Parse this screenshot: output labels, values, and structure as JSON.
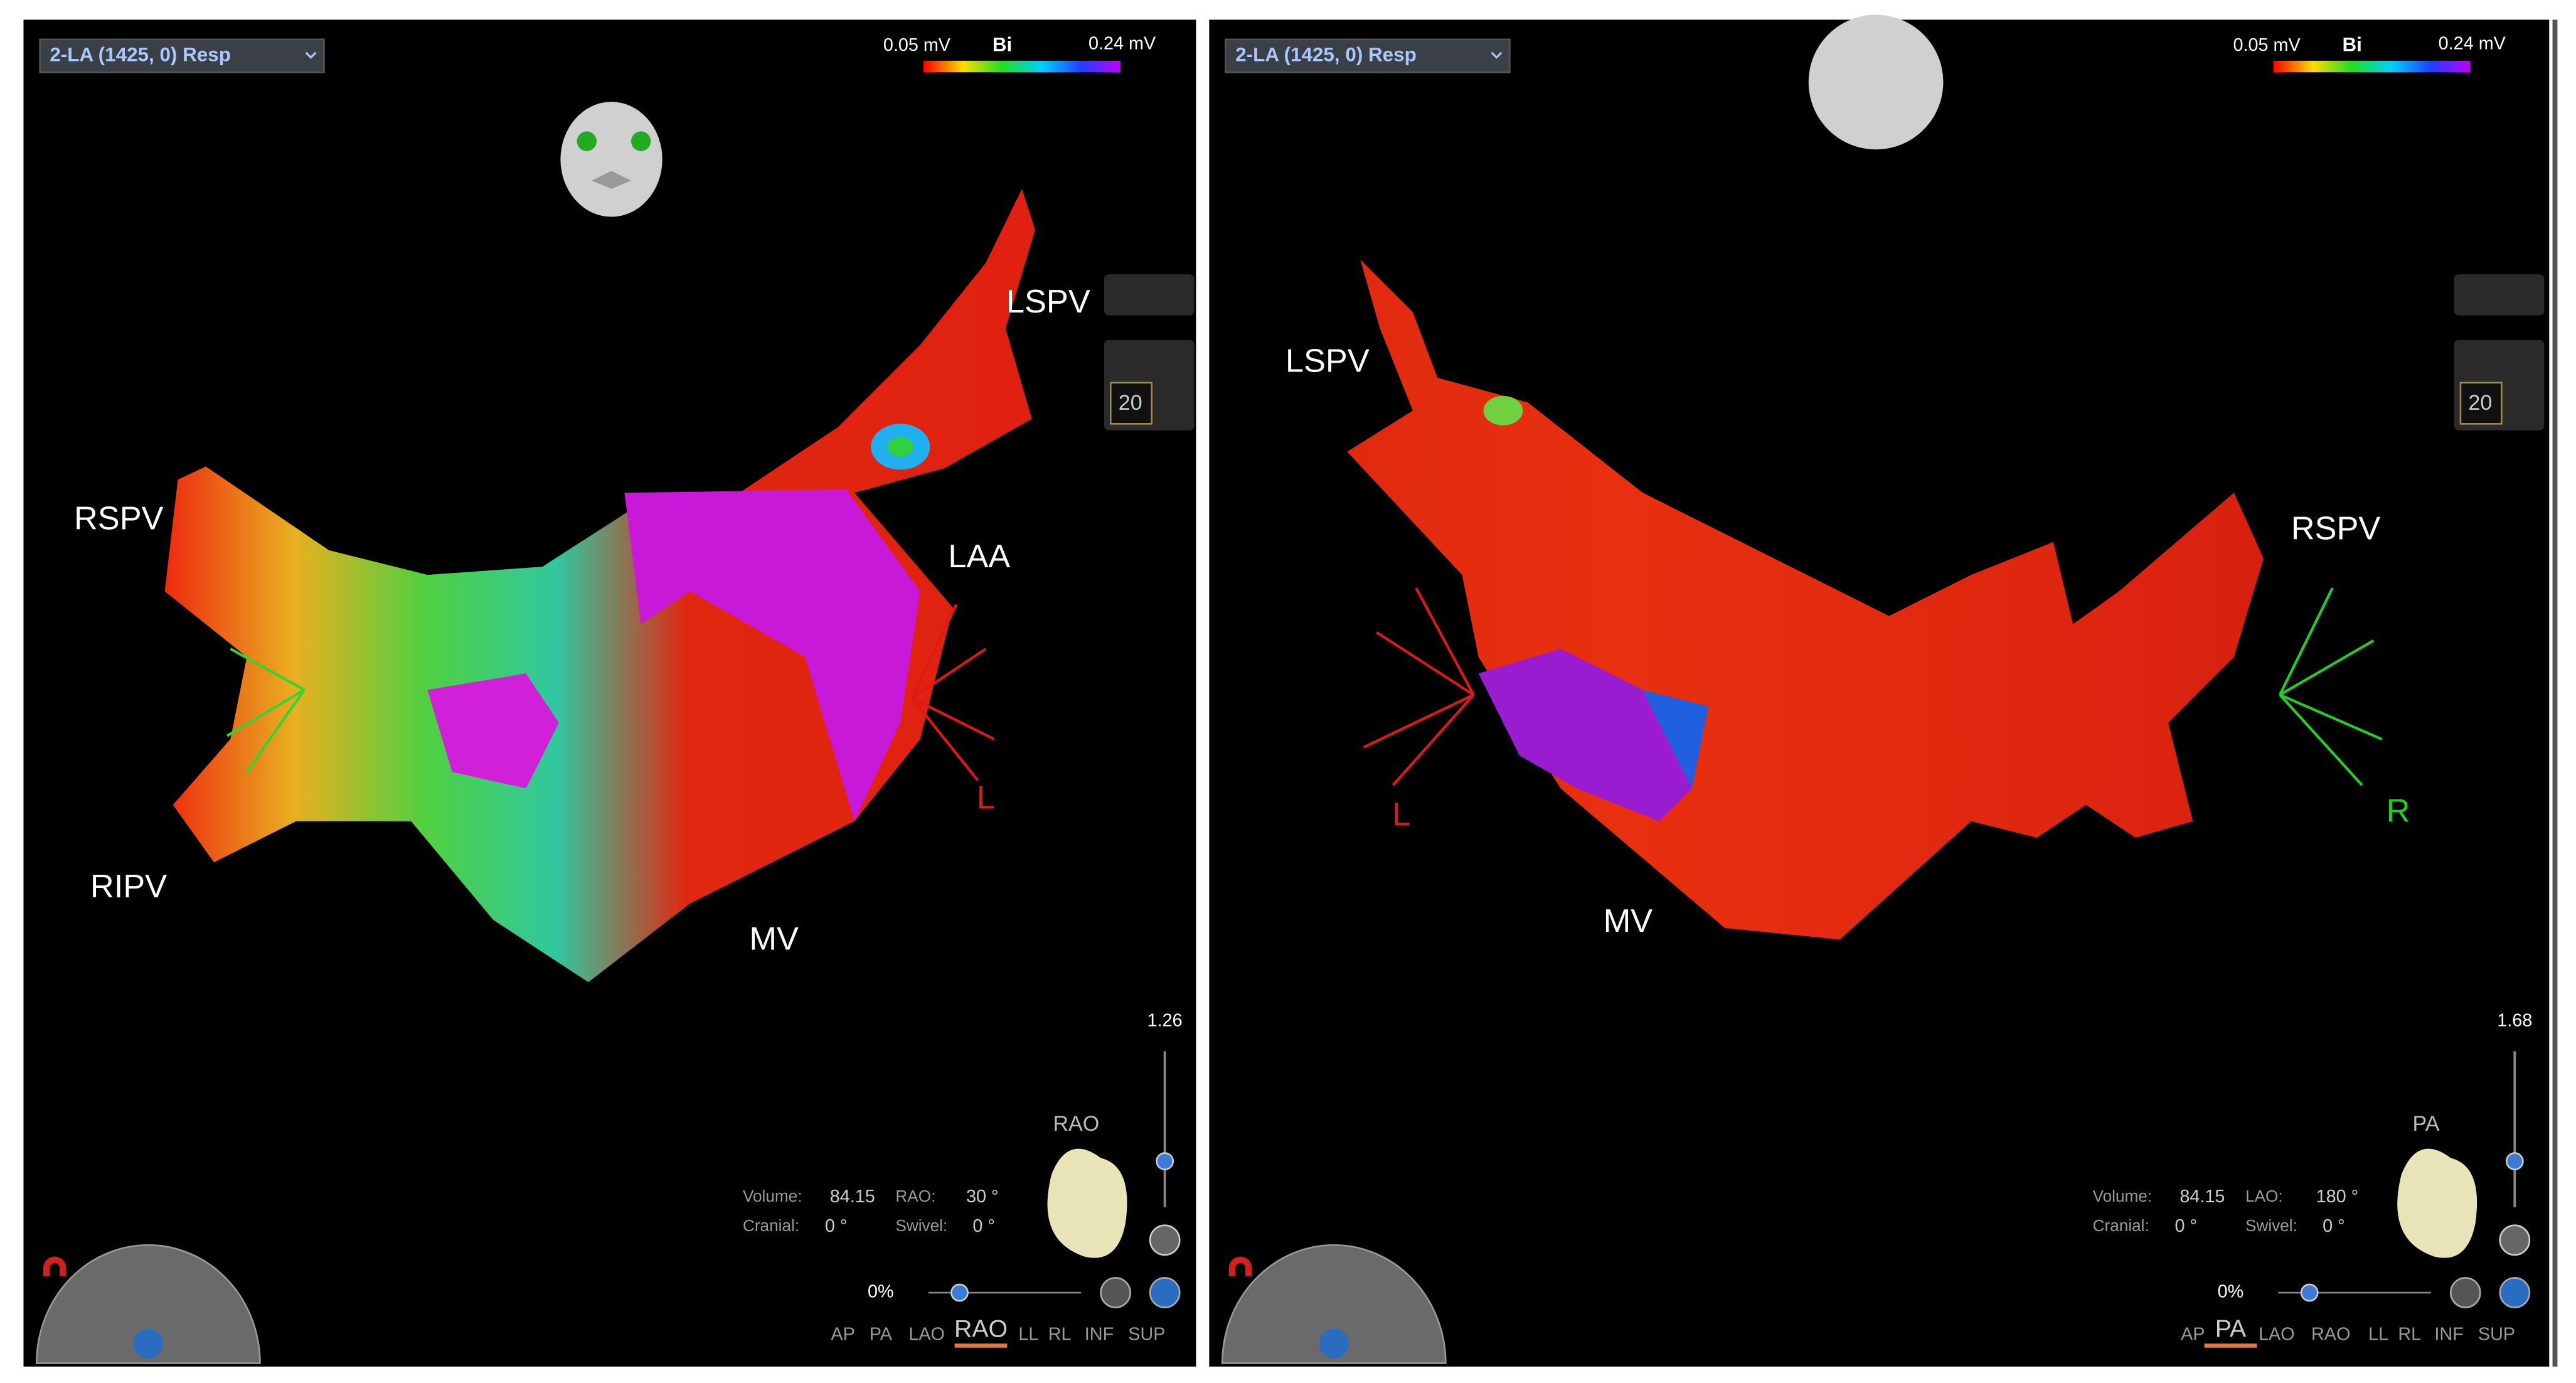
{
  "panels": [
    {
      "dropdown": "2-LA (1425, 0) Resp",
      "scale": {
        "min": "0.05 mV",
        "mode": "Bi",
        "max": "0.24 mV"
      },
      "labels": [
        {
          "text": "LSPV",
          "color": "#ffffff"
        },
        {
          "text": "RSPV",
          "color": "#ffffff"
        },
        {
          "text": "LAA",
          "color": "#ffffff"
        },
        {
          "text": "RIPV",
          "color": "#ffffff"
        },
        {
          "text": "MV",
          "color": "#ffffff"
        },
        {
          "text": "L",
          "color": "#e01818"
        }
      ],
      "counter": "20",
      "zoom": "1.26",
      "view_name": "RAO",
      "info": {
        "volume_label": "Volume:",
        "volume": "84.15",
        "angle_label": "RAO:",
        "angle": "30 °",
        "cranial_label": "Cranial:",
        "cranial": "0 °",
        "swivel_label": "Swivel:",
        "swivel": "0 °"
      },
      "percent": "0%",
      "views": [
        "AP",
        "PA",
        "LAO",
        "RAO",
        "LL",
        "RL",
        "INF",
        "SUP"
      ],
      "active_view": "RAO"
    },
    {
      "dropdown": "2-LA (1425, 0) Resp",
      "scale": {
        "min": "0.05 mV",
        "mode": "Bi",
        "max": "0.24 mV"
      },
      "labels": [
        {
          "text": "LSPV",
          "color": "#ffffff"
        },
        {
          "text": "RSPV",
          "color": "#ffffff"
        },
        {
          "text": "L",
          "color": "#e01818"
        },
        {
          "text": "MV",
          "color": "#ffffff"
        },
        {
          "text": "R",
          "color": "#22d022"
        }
      ],
      "counter": "20",
      "zoom": "1.68",
      "view_name": "PA",
      "info": {
        "volume_label": "Volume:",
        "volume": "84.15",
        "angle_label": "LAO:",
        "angle": "180 °",
        "cranial_label": "Cranial:",
        "cranial": "0 °",
        "swivel_label": "Swivel:",
        "swivel": "0 °"
      },
      "percent": "0%",
      "views": [
        "AP",
        "PA",
        "LAO",
        "RAO",
        "LL",
        "RL",
        "INF",
        "SUP"
      ],
      "active_view": "PA"
    }
  ]
}
